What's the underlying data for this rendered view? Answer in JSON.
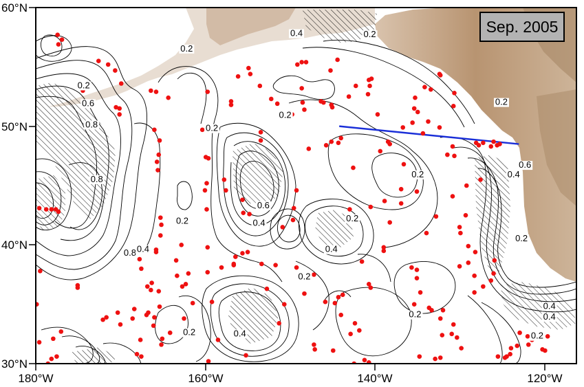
{
  "map": {
    "date_label": "Sep. 2005",
    "lat_ticks": [
      "60°N",
      "50°N",
      "40°N",
      "30°N"
    ],
    "lon_ticks": [
      "180°W",
      "160°W",
      "140°W",
      "120°W"
    ],
    "lat_range": [
      30,
      60
    ],
    "lon_range": [
      -180,
      -118
    ],
    "colors": {
      "contour": "#000000",
      "float": "#ee1111",
      "section_line": "#1a2fd8",
      "land_light": "#e6dacf",
      "land_mid": "#c9ad93",
      "land_dark": "#a78766"
    },
    "section_line": {
      "from": [
        -145.2,
        50.0
      ],
      "to": [
        -124.6,
        48.5
      ]
    },
    "contour_labels": [
      {
        "text": "0.2",
        "lon": -159.8,
        "lat": 49.6
      },
      {
        "text": "0.2",
        "lon": -163.2,
        "lat": 41.8
      },
      {
        "text": "0.2",
        "lon": -151.4,
        "lat": 50.7
      },
      {
        "text": "0.2",
        "lon": -174.5,
        "lat": 53.2
      },
      {
        "text": "0.6",
        "lon": -174.0,
        "lat": 51.7
      },
      {
        "text": "0.8",
        "lon": -173.6,
        "lat": 49.9
      },
      {
        "text": "0.8",
        "lon": -173.0,
        "lat": 45.3
      },
      {
        "text": "0.8",
        "lon": -169.2,
        "lat": 39.1
      },
      {
        "text": "0.4",
        "lon": -167.7,
        "lat": 39.4
      },
      {
        "text": "0.6",
        "lon": -153.9,
        "lat": 43.1
      },
      {
        "text": "0.4",
        "lon": -154.4,
        "lat": 41.6
      },
      {
        "text": "0.2",
        "lon": -143.7,
        "lat": 42.0
      },
      {
        "text": "0.4",
        "lon": -146.1,
        "lat": 39.4
      },
      {
        "text": "0.2",
        "lon": -149.2,
        "lat": 37.1
      },
      {
        "text": "0.2",
        "lon": -141.7,
        "lat": 57.5
      },
      {
        "text": "0.4",
        "lon": -150.1,
        "lat": 57.6
      },
      {
        "text": "0.2",
        "lon": -162.7,
        "lat": 56.3
      },
      {
        "text": "0.2",
        "lon": -136.2,
        "lat": 45.7
      },
      {
        "text": "0.2",
        "lon": -126.6,
        "lat": 51.8
      },
      {
        "text": "0.4",
        "lon": -125.2,
        "lat": 45.7
      },
      {
        "text": "0.6",
        "lon": -123.9,
        "lat": 46.5
      },
      {
        "text": "0.2",
        "lon": -124.3,
        "lat": 40.3
      },
      {
        "text": "0.2",
        "lon": -162.4,
        "lat": 32.4
      },
      {
        "text": "0.4",
        "lon": -156.6,
        "lat": 32.3
      },
      {
        "text": "0.2",
        "lon": -136.5,
        "lat": 33.9
      },
      {
        "text": "0.4",
        "lon": -121.1,
        "lat": 34.6
      },
      {
        "text": "0.4",
        "lon": -121.1,
        "lat": 33.7
      },
      {
        "text": "0.2",
        "lon": -122.5,
        "lat": 32.1
      }
    ],
    "floats": [
      [
        -177.4,
        56.9
      ],
      [
        -177.0,
        57.3
      ],
      [
        -177.5,
        57.7
      ],
      [
        -172.8,
        55.5
      ],
      [
        -171.7,
        55.2
      ],
      [
        -170.9,
        54.7
      ],
      [
        -174.6,
        53.0
      ],
      [
        -170.2,
        53.6
      ],
      [
        -170.8,
        51.6
      ],
      [
        -170.4,
        51.5
      ],
      [
        -170.4,
        51.0
      ],
      [
        -166.8,
        53.0
      ],
      [
        -166.2,
        52.9
      ],
      [
        -164.8,
        52.4
      ],
      [
        -160.3,
        52.9
      ],
      [
        -166.4,
        49.7
      ],
      [
        -165.8,
        48.8
      ],
      [
        -165.9,
        47.6
      ],
      [
        -166.1,
        47.0
      ],
      [
        -166.0,
        46.3
      ],
      [
        -160.5,
        47.4
      ],
      [
        -160.2,
        47.3
      ],
      [
        -160.4,
        45.2
      ],
      [
        -160.6,
        44.6
      ],
      [
        -160.4,
        43.0
      ],
      [
        -165.7,
        42.3
      ],
      [
        -165.6,
        41.7
      ],
      [
        -165.7,
        40.8
      ],
      [
        -166.2,
        39.6
      ],
      [
        -166.2,
        39.4
      ],
      [
        -168.1,
        38.8
      ],
      [
        -167.9,
        38.0
      ],
      [
        -166.7,
        36.8
      ],
      [
        -165.9,
        36.1
      ],
      [
        -165.8,
        34.8
      ],
      [
        -166.4,
        33.9
      ],
      [
        -166.5,
        33.2
      ],
      [
        -167.1,
        34.3
      ],
      [
        -167.3,
        34.1
      ],
      [
        -168.9,
        33.8
      ],
      [
        -168.7,
        34.6
      ],
      [
        -168.0,
        32.0
      ],
      [
        -168.4,
        30.8
      ],
      [
        -167.9,
        30.6
      ],
      [
        -165.5,
        32.1
      ],
      [
        -165.6,
        31.6
      ],
      [
        -172.3,
        33.7
      ],
      [
        -171.9,
        33.9
      ],
      [
        -170.6,
        34.3
      ],
      [
        -170.3,
        33.3
      ],
      [
        -175.2,
        36.6
      ],
      [
        -175.2,
        36.4
      ],
      [
        -177.1,
        32.7
      ],
      [
        -178.0,
        32.1
      ],
      [
        -179.6,
        31.8
      ],
      [
        -178.2,
        30.4
      ],
      [
        -177.6,
        30.6
      ],
      [
        -178.6,
        30.0
      ],
      [
        -179.9,
        35.0
      ],
      [
        -179.5,
        37.8
      ],
      [
        -179.6,
        43.1
      ],
      [
        -178.8,
        43.0
      ],
      [
        -178.2,
        43.0
      ],
      [
        -177.7,
        43.0
      ],
      [
        -177.4,
        42.8
      ],
      [
        -160.3,
        39.8
      ],
      [
        -160.3,
        37.7
      ],
      [
        -159.8,
        35.2
      ],
      [
        -158.7,
        38.1
      ],
      [
        -157.1,
        39.0
      ],
      [
        -156.3,
        39.3
      ],
      [
        -155.7,
        39.4
      ],
      [
        -154.1,
        38.4
      ],
      [
        -152.5,
        38.3
      ],
      [
        -150.1,
        38.1
      ],
      [
        -149.4,
        37.4
      ],
      [
        -148.1,
        37.5
      ],
      [
        -149.2,
        35.9
      ],
      [
        -145.3,
        35.6
      ],
      [
        -144.8,
        35.8
      ],
      [
        -145.7,
        35.1
      ],
      [
        -146.8,
        35.2
      ],
      [
        -142.9,
        32.8
      ],
      [
        -143.4,
        33.4
      ],
      [
        -143.9,
        32.5
      ],
      [
        -141.6,
        36.4
      ],
      [
        -141.8,
        36.7
      ],
      [
        -142.6,
        38.6
      ],
      [
        -140.1,
        39.8
      ],
      [
        -140.1,
        39.5
      ],
      [
        -136.9,
        38.1
      ],
      [
        -136.3,
        37.9
      ],
      [
        -136.3,
        37.2
      ],
      [
        -135.9,
        36.0
      ],
      [
        -136.6,
        35.0
      ],
      [
        -134.6,
        34.5
      ],
      [
        -134.9,
        34.7
      ],
      [
        -133.3,
        34.5
      ],
      [
        -133.6,
        33.8
      ],
      [
        -133.4,
        32.4
      ],
      [
        -132.3,
        32.5
      ],
      [
        -132.1,
        33.3
      ],
      [
        -131.7,
        32.2
      ],
      [
        -131.2,
        31.3
      ],
      [
        -133.6,
        30.5
      ],
      [
        -134.2,
        30.4
      ],
      [
        -136.0,
        30.6
      ],
      [
        -129.7,
        36.0
      ],
      [
        -128.7,
        36.5
      ],
      [
        -129.7,
        37.4
      ],
      [
        -130.4,
        38.5
      ],
      [
        -129.6,
        39.4
      ],
      [
        -130.4,
        39.9
      ],
      [
        -131.4,
        41.5
      ],
      [
        -131.3,
        41.0
      ],
      [
        -130.7,
        42.5
      ],
      [
        -132.2,
        44.1
      ],
      [
        -134.1,
        42.4
      ],
      [
        -138.1,
        43.5
      ],
      [
        -139.4,
        41.9
      ],
      [
        -138.1,
        44.7
      ],
      [
        -137.8,
        46.8
      ],
      [
        -139.4,
        48.5
      ],
      [
        -139.6,
        48.7
      ],
      [
        -140.5,
        47.9
      ],
      [
        -145.0,
        49.0
      ],
      [
        -145.3,
        48.6
      ],
      [
        -146.1,
        48.7
      ],
      [
        -146.7,
        48.4
      ],
      [
        -148.7,
        48.1
      ],
      [
        -146.0,
        51.6
      ],
      [
        -147.3,
        52.1
      ],
      [
        -147.0,
        52.0
      ],
      [
        -146.1,
        51.8
      ],
      [
        -141.9,
        52.7
      ],
      [
        -141.7,
        53.4
      ],
      [
        -140.8,
        51.0
      ],
      [
        -135.4,
        53.3
      ],
      [
        -134.7,
        53.1
      ],
      [
        -136.5,
        52.4
      ],
      [
        -136.6,
        51.5
      ],
      [
        -136.2,
        51.2
      ],
      [
        -136.8,
        50.3
      ],
      [
        -135.0,
        50.4
      ],
      [
        -135.6,
        49.4
      ],
      [
        -133.7,
        49.9
      ],
      [
        -132.1,
        51.7
      ],
      [
        -132.0,
        52.8
      ],
      [
        -133.6,
        54.3
      ],
      [
        -133.7,
        54.4
      ],
      [
        -141.5,
        54.0
      ],
      [
        -141.8,
        53.9
      ],
      [
        -143.3,
        53.4
      ],
      [
        -144.1,
        52.5
      ],
      [
        -146.2,
        54.7
      ],
      [
        -145.4,
        55.6
      ],
      [
        -150.0,
        55.2
      ],
      [
        -149.5,
        55.4
      ],
      [
        -149.0,
        55.4
      ],
      [
        -149.5,
        53.2
      ],
      [
        -149.4,
        52.0
      ],
      [
        -149.2,
        51.4
      ],
      [
        -150.6,
        51.0
      ],
      [
        -150.8,
        51.1
      ],
      [
        -152.3,
        51.9
      ],
      [
        -153.0,
        52.3
      ],
      [
        -154.3,
        53.4
      ],
      [
        -155.4,
        54.4
      ],
      [
        -155.6,
        54.9
      ],
      [
        -156.8,
        54.2
      ],
      [
        -157.6,
        52.1
      ],
      [
        -157.6,
        51.8
      ],
      [
        -154.2,
        49.5
      ],
      [
        -154.2,
        48.8
      ],
      [
        -160.9,
        49.7
      ],
      [
        -150.1,
        44.6
      ],
      [
        -150.4,
        43.1
      ],
      [
        -150.5,
        42.1
      ],
      [
        -151.7,
        41.5
      ],
      [
        -143.6,
        46.5
      ],
      [
        -144.0,
        43.0
      ],
      [
        -141.6,
        43.2
      ],
      [
        -140.0,
        43.7
      ],
      [
        -135.2,
        41.0
      ],
      [
        -136.3,
        44.5
      ],
      [
        -137.9,
        49.9
      ],
      [
        -129.5,
        48.6
      ],
      [
        -129.2,
        48.4
      ],
      [
        -128.7,
        48.6
      ],
      [
        -127.8,
        48.3
      ],
      [
        -127.5,
        48.7
      ],
      [
        -127.1,
        48.4
      ],
      [
        -126.8,
        48.5
      ],
      [
        -129.0,
        45.5
      ],
      [
        -130.6,
        45.0
      ],
      [
        -132.0,
        47.5
      ],
      [
        -132.2,
        48.3
      ],
      [
        -132.8,
        47.6
      ],
      [
        -127.4,
        38.7
      ],
      [
        -127.5,
        37.6
      ],
      [
        -127.8,
        37.0
      ],
      [
        -124.5,
        32.6
      ],
      [
        -123.6,
        32.3
      ],
      [
        -123.1,
        32.0
      ],
      [
        -123.5,
        31.6
      ],
      [
        -124.8,
        31.5
      ],
      [
        -125.5,
        31.3
      ],
      [
        -121.9,
        31.2
      ],
      [
        -121.6,
        31.1
      ],
      [
        -121.3,
        32.3
      ],
      [
        -125.6,
        30.8
      ],
      [
        -126.0,
        30.6
      ],
      [
        -126.2,
        30.5
      ],
      [
        -127.0,
        30.6
      ],
      [
        -131.4,
        38.2
      ],
      [
        -141.8,
        30.1
      ],
      [
        -142.3,
        30.3
      ],
      [
        -143.5,
        30.0
      ],
      [
        -148.1,
        31.6
      ],
      [
        -148.0,
        31.2
      ],
      [
        -145.9,
        31.1
      ],
      [
        -145.0,
        34.1
      ],
      [
        -155.9,
        30.7
      ],
      [
        -160.2,
        30.2
      ],
      [
        -163.0,
        33.8
      ],
      [
        -162.0,
        35.1
      ],
      [
        -159.1,
        32.0
      ],
      [
        -153.5,
        36.3
      ],
      [
        -152.1,
        33.4
      ],
      [
        -151.5,
        35.0
      ],
      [
        -156.3,
        43.8
      ],
      [
        -156.2,
        42.7
      ],
      [
        -155.5,
        42.6
      ],
      [
        -157.3,
        38.3
      ],
      [
        -157.3,
        38.4
      ],
      [
        -164.6,
        32.6
      ],
      [
        -162.8,
        36.7
      ],
      [
        -163.2,
        36.5
      ],
      [
        -166.8,
        36.2
      ],
      [
        -167.2,
        36.5
      ],
      [
        -163.8,
        37.4
      ],
      [
        -162.5,
        37.6
      ],
      [
        -163.3,
        40.0
      ],
      [
        -163.9,
        38.7
      ],
      [
        -158.2,
        44.6
      ],
      [
        -158.4,
        45.5
      ]
    ]
  }
}
